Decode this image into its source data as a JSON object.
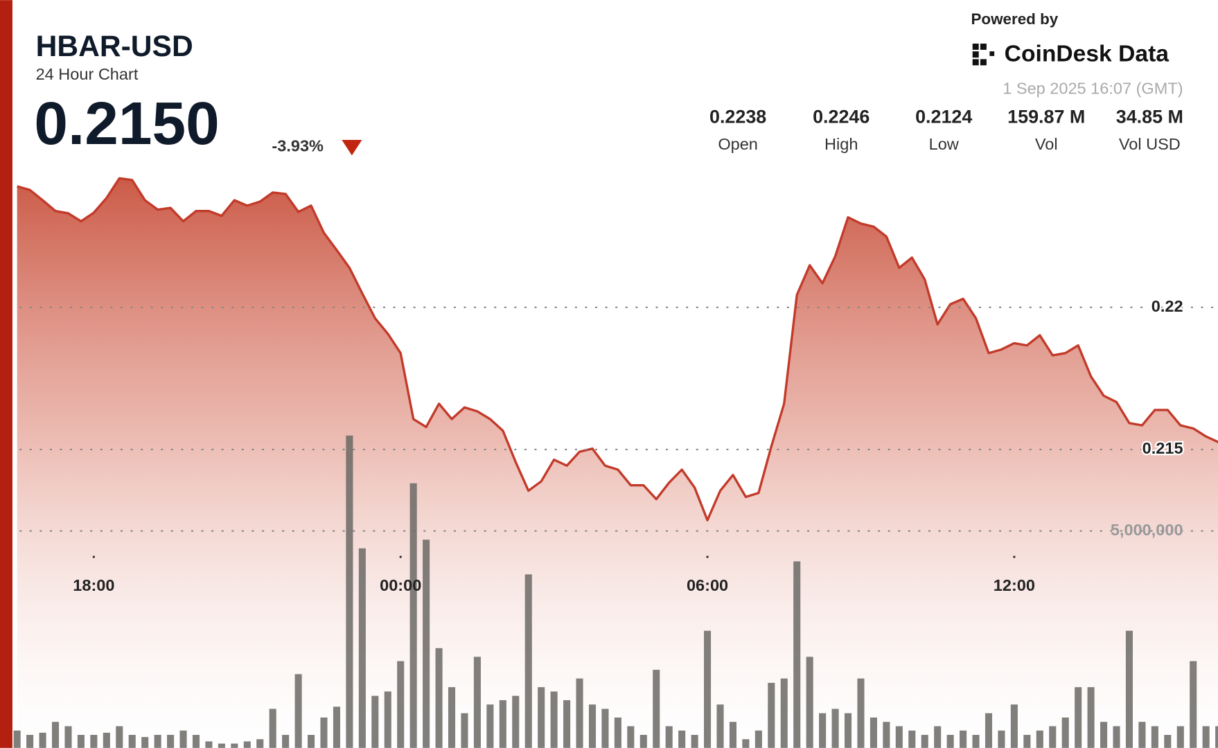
{
  "header": {
    "price": "0.2150",
    "change": "-3.93%",
    "powered": "Powered by",
    "brand": "CoinDesk Data",
    "timestamp": "1 Sep 2025 16:07 (GMT)",
    "stats": [
      {
        "value": "0.2238",
        "label": "Open"
      },
      {
        "value": "0.2246",
        "label": "High"
      },
      {
        "value": "0.2124",
        "label": "Low"
      },
      {
        "value": "159.87 M",
        "label": "Vol"
      },
      {
        "value": "34.85 M",
        "label": "Vol USD"
      }
    ]
  },
  "chart_data": {
    "type": "line",
    "title": "HBAR-USD",
    "subtitle": "24 Hour Chart",
    "x": [
      "16:30",
      "16:45",
      "17:00",
      "17:15",
      "17:30",
      "17:45",
      "18:00",
      "18:15",
      "18:30",
      "18:45",
      "19:00",
      "19:15",
      "19:30",
      "19:45",
      "20:00",
      "20:15",
      "20:30",
      "20:45",
      "21:00",
      "21:15",
      "21:30",
      "21:45",
      "22:00",
      "22:15",
      "22:30",
      "22:45",
      "23:00",
      "23:15",
      "23:30",
      "23:45",
      "00:00",
      "00:15",
      "00:30",
      "00:45",
      "01:00",
      "01:15",
      "01:30",
      "01:45",
      "02:00",
      "02:15",
      "02:30",
      "02:45",
      "03:00",
      "03:15",
      "03:30",
      "03:45",
      "04:00",
      "04:15",
      "04:30",
      "04:45",
      "05:00",
      "05:15",
      "05:30",
      "05:45",
      "06:00",
      "06:15",
      "06:30",
      "06:45",
      "07:00",
      "07:15",
      "07:30",
      "07:45",
      "08:00",
      "08:15",
      "08:30",
      "08:45",
      "09:00",
      "09:15",
      "09:30",
      "09:45",
      "10:00",
      "10:15",
      "10:30",
      "10:45",
      "11:00",
      "11:15",
      "11:30",
      "11:45",
      "12:00",
      "12:15",
      "12:30",
      "12:45",
      "13:00",
      "13:15",
      "13:30",
      "13:45",
      "14:00",
      "14:15",
      "14:30",
      "14:45",
      "15:00",
      "15:15",
      "15:30",
      "15:45",
      "16:00"
    ],
    "series": [
      {
        "name": "Price",
        "color": "#c23a2a",
        "values": [
          0.22426,
          0.22413,
          0.22377,
          0.22339,
          0.22331,
          0.22303,
          0.22333,
          0.22385,
          0.22454,
          0.22448,
          0.22377,
          0.22344,
          0.2235,
          0.22303,
          0.22339,
          0.22339,
          0.22322,
          0.22377,
          0.22358,
          0.22372,
          0.22404,
          0.22399,
          0.22336,
          0.22358,
          0.22262,
          0.22202,
          0.22139,
          0.22049,
          0.21962,
          0.21907,
          0.21839,
          0.21607,
          0.21579,
          0.21661,
          0.21607,
          0.21648,
          0.21634,
          0.21607,
          0.21566,
          0.21456,
          0.21355,
          0.21388,
          0.21464,
          0.21443,
          0.21492,
          0.21503,
          0.21443,
          0.21429,
          0.21374,
          0.21374,
          0.21325,
          0.21383,
          0.21429,
          0.21366,
          0.21251,
          0.21355,
          0.2141,
          0.21333,
          0.21347,
          0.21511,
          0.21661,
          0.22044,
          0.22148,
          0.22085,
          0.2218,
          0.22317,
          0.22295,
          0.22284,
          0.22249,
          0.22139,
          0.22175,
          0.22098,
          0.2194,
          0.22011,
          0.2203,
          0.21962,
          0.21839,
          0.21852,
          0.21874,
          0.21866,
          0.21902,
          0.21831,
          0.21839,
          0.21866,
          0.21757,
          0.21689,
          0.21667,
          0.21593,
          0.21585,
          0.21639,
          0.21639,
          0.21585,
          0.21574,
          0.21546,
          0.21525
        ]
      },
      {
        "name": "Volume",
        "color": "#6b6865",
        "axis": "y2",
        "values": [
          400000,
          300000,
          350000,
          600000,
          500000,
          300000,
          300000,
          350000,
          500000,
          300000,
          250000,
          300000,
          300000,
          400000,
          300000,
          150000,
          100000,
          100000,
          150000,
          200000,
          900000,
          300000,
          1700000,
          300000,
          700000,
          950000,
          7200000,
          4600000,
          1200000,
          1300000,
          2000000,
          6100000,
          4800000,
          2300000,
          1400000,
          800000,
          2100000,
          1000000,
          1100000,
          1200000,
          4000000,
          1400000,
          1300000,
          1100000,
          1600000,
          1000000,
          900000,
          700000,
          500000,
          300000,
          1800000,
          500000,
          400000,
          300000,
          2700000,
          1000000,
          600000,
          200000,
          400000,
          1500000,
          1600000,
          4300000,
          2100000,
          800000,
          900000,
          800000,
          1600000,
          700000,
          600000,
          500000,
          400000,
          300000,
          500000,
          300000,
          400000,
          300000,
          800000,
          400000,
          1000000,
          300000,
          400000,
          500000,
          700000,
          1400000,
          1400000,
          600000,
          500000,
          2700000,
          600000,
          500000,
          300000,
          500000,
          2000000,
          500000,
          500000
        ]
      }
    ],
    "ylim": [
      0.2045,
      0.2248
    ],
    "yticks": [
      0.215,
      0.22
    ],
    "y2lim": [
      0,
      13300000
    ],
    "y2ticks": [
      {
        "value": 5000000,
        "label": "5,000,000"
      }
    ],
    "xticks": [
      "18:00",
      "00:00",
      "06:00",
      "12:00"
    ],
    "grid": true
  }
}
